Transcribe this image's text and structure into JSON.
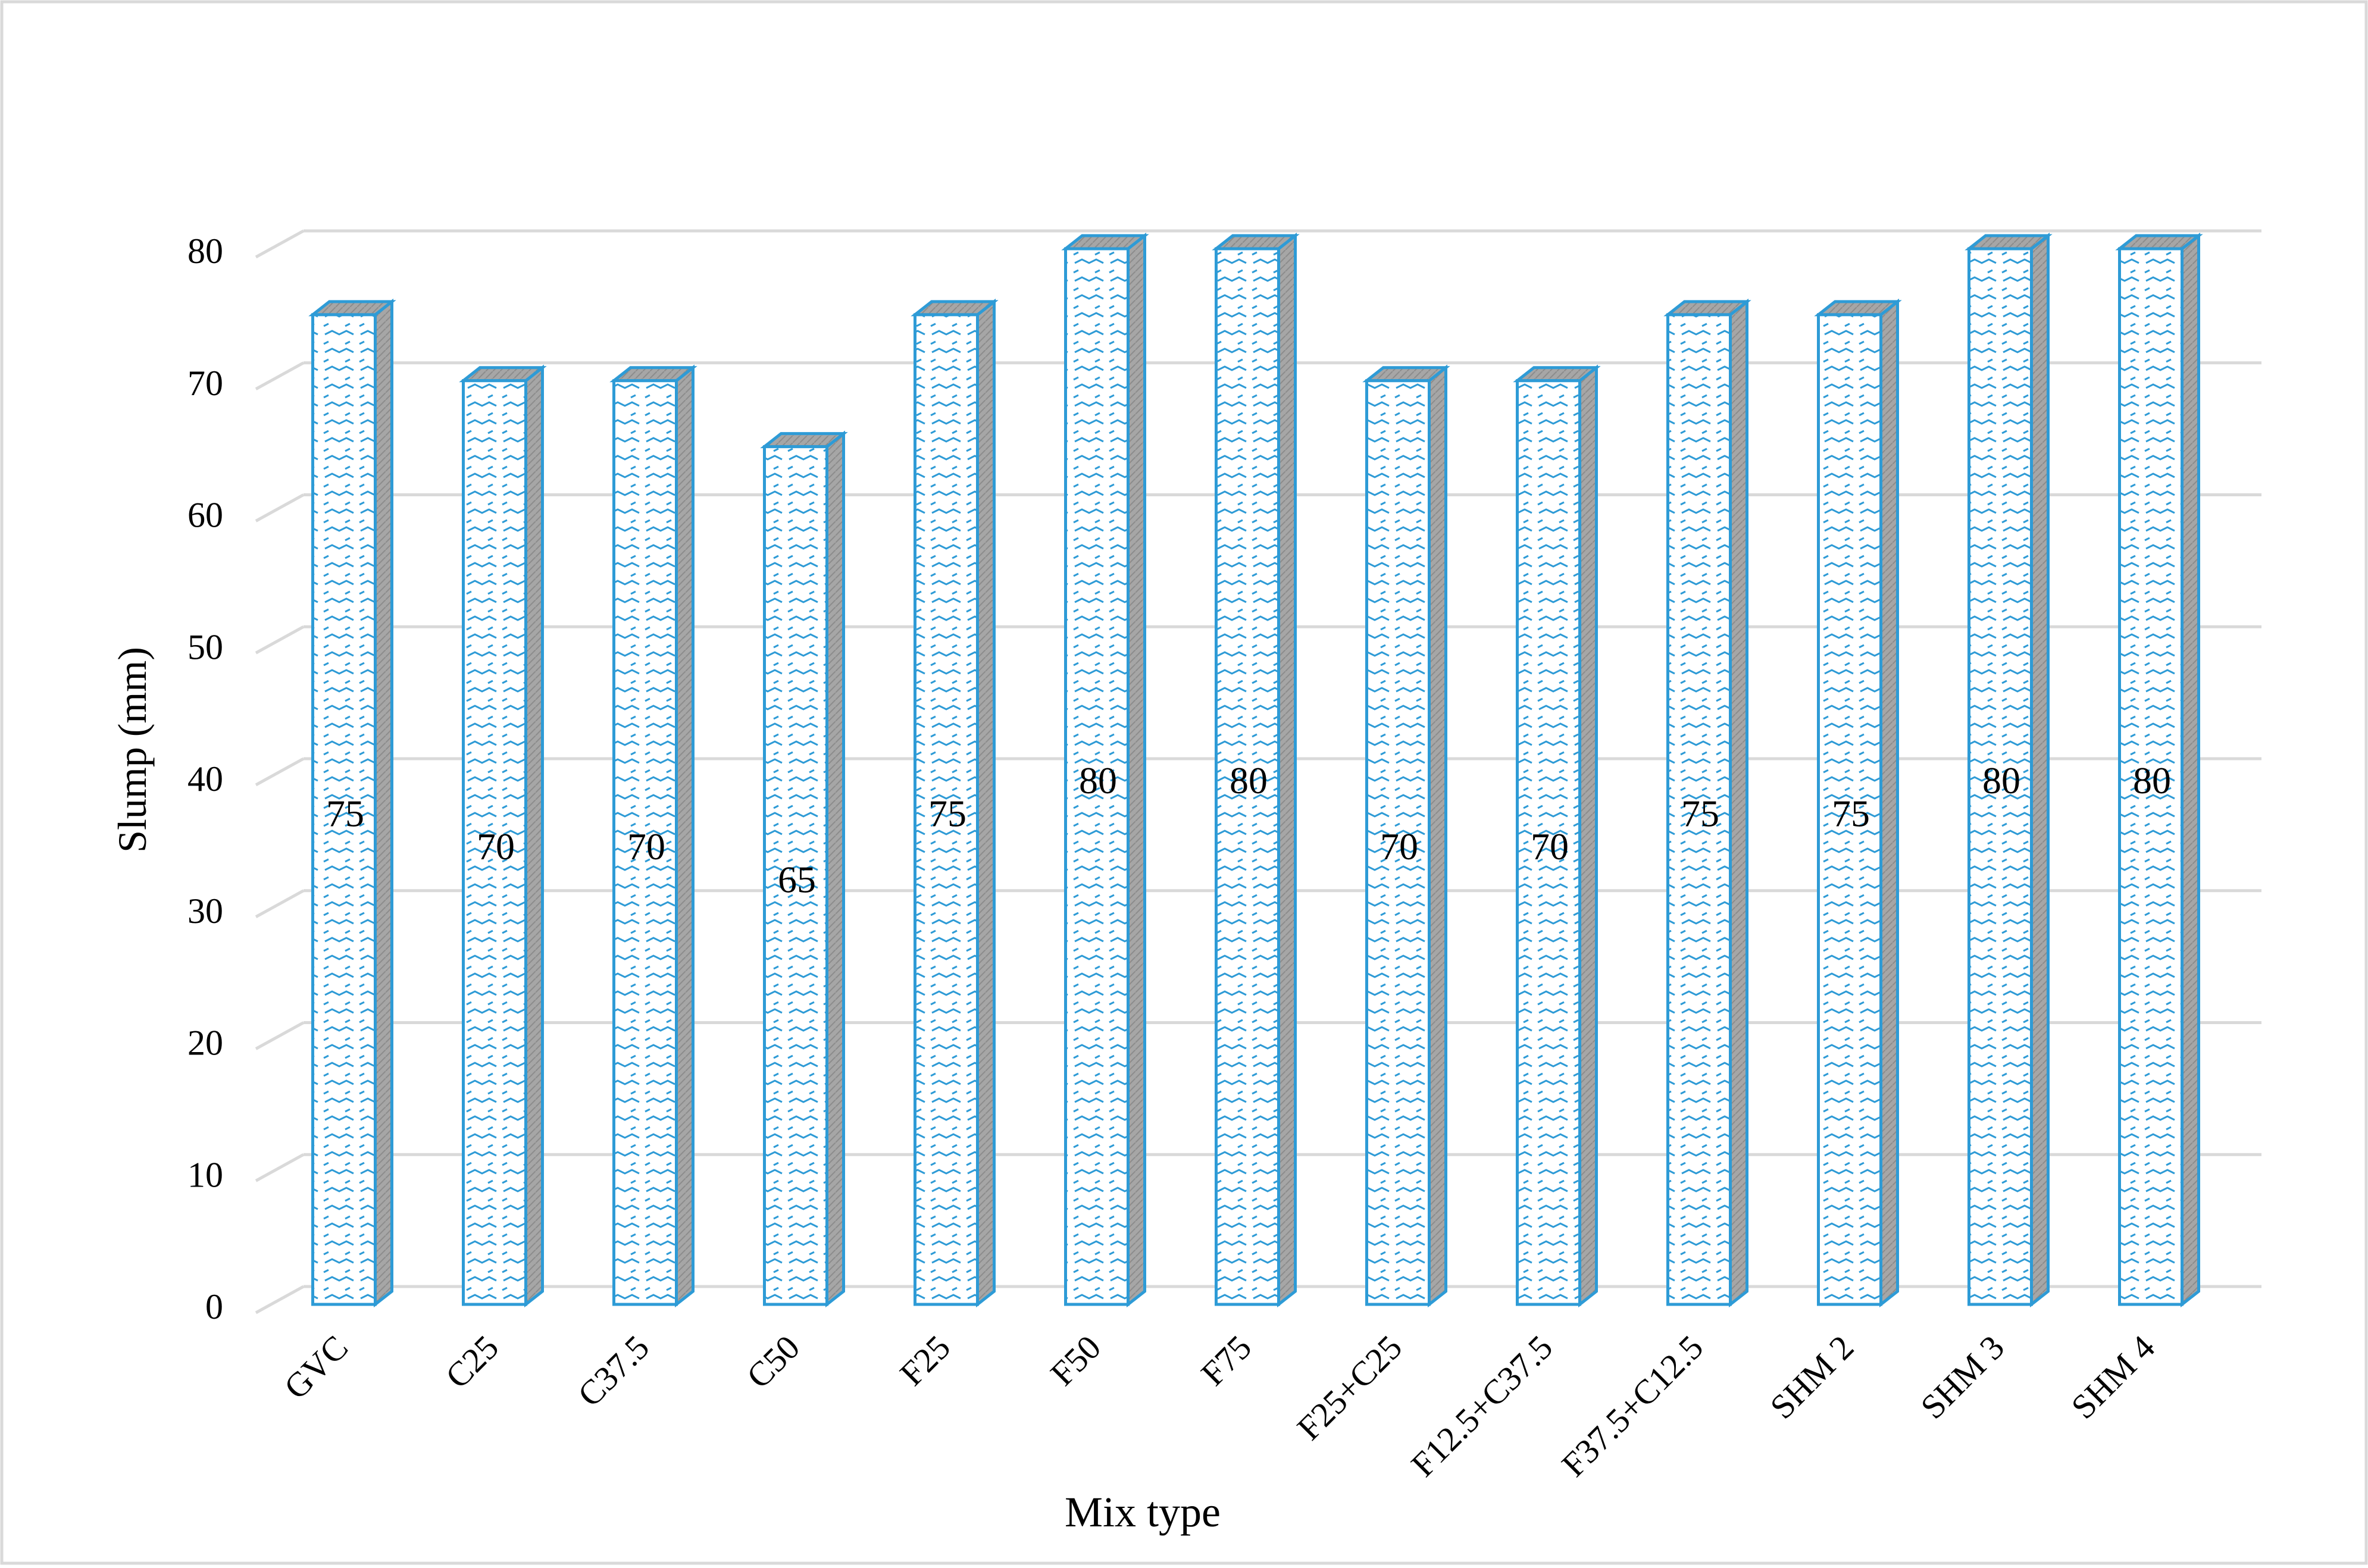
{
  "chart_data": {
    "type": "bar",
    "style": "3d-column",
    "categories": [
      "GVC",
      "C25",
      "C37.5",
      "C50",
      "F25",
      "F50",
      "F75",
      "F25+C25",
      "F12.5+C37.5",
      "F37.5+C12.5",
      "SHM 2",
      "SHM 3",
      "SHM 4"
    ],
    "values": [
      75,
      70,
      70,
      65,
      75,
      80,
      80,
      70,
      70,
      75,
      75,
      80,
      80
    ],
    "data_labels": [
      "75",
      "70",
      "70",
      "65",
      "75",
      "80",
      "80",
      "70",
      "70",
      "75",
      "75",
      "80",
      "80"
    ],
    "xlabel": "Mix type",
    "ylabel": "Slump (mm)",
    "ylim": [
      0,
      80
    ],
    "yticks": [
      0,
      10,
      20,
      30,
      40,
      50,
      60,
      70,
      80
    ],
    "grid": true,
    "legend": "none",
    "colors": {
      "bar_outline": "#2e9bd6",
      "bar_pattern": "#2e9bd6",
      "bar_side": "#a6a6a6",
      "gridline": "#d9d9d9",
      "border": "#d9d9d9"
    }
  }
}
